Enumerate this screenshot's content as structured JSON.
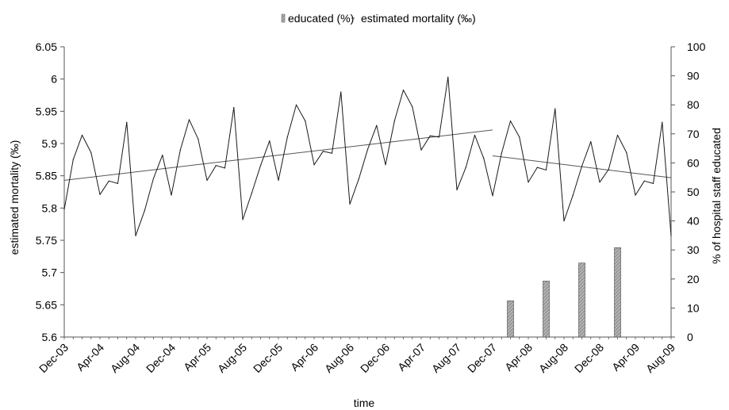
{
  "chart_data": {
    "type": "line",
    "xlabel": "time",
    "ylabel": "estimated mortality (‰)",
    "y2label": "% of hospital staff educated",
    "ylim": [
      5.6,
      6.05
    ],
    "y2lim": [
      0,
      100
    ],
    "yticks": [
      "5.6",
      "5.65",
      "5.7",
      "5.75",
      "5.8",
      "5.85",
      "5.9",
      "5.95",
      "6",
      "6.05"
    ],
    "y2ticks": [
      "0",
      "10",
      "20",
      "30",
      "40",
      "50",
      "60",
      "70",
      "80",
      "90",
      "100"
    ],
    "xticks": [
      "Dec-03",
      "Apr-04",
      "Aug-04",
      "Dec-04",
      "Apr-05",
      "Aug-05",
      "Dec-05",
      "Apr-06",
      "Aug-06",
      "Dec-06",
      "Apr-07",
      "Aug-07",
      "Dec-07",
      "Apr-08",
      "Aug-08",
      "Dec-08",
      "Apr-09",
      "Aug-09"
    ],
    "legend_position": "top",
    "grid": false,
    "legend": {
      "bar_label": "educated (%)",
      "line_label": "estimated mortality (‰)"
    },
    "series": [
      {
        "kind": "line",
        "axis": "left",
        "values": [
          5.798,
          5.875,
          5.913,
          5.886,
          5.821,
          5.842,
          5.838,
          5.933,
          5.757,
          5.796,
          5.846,
          5.882,
          5.82,
          5.89,
          5.937,
          5.907,
          5.843,
          5.866,
          5.862,
          5.956,
          5.782,
          5.823,
          5.866,
          5.904,
          5.843,
          5.91,
          5.96,
          5.935,
          5.867,
          5.888,
          5.885,
          5.98,
          5.806,
          5.845,
          5.891,
          5.928,
          5.867,
          5.935,
          5.983,
          5.957,
          5.89,
          5.912,
          5.91,
          6.003,
          5.828,
          5.863,
          5.913,
          5.877,
          5.819,
          5.885,
          5.935,
          5.91,
          5.84,
          5.863,
          5.859,
          5.954,
          5.78,
          5.82,
          5.865,
          5.903,
          5.84,
          5.86,
          5.913,
          5.886,
          5.82,
          5.842,
          5.838,
          5.933,
          5.757
        ]
      },
      {
        "kind": "bar",
        "axis": "right",
        "points": [
          {
            "index": 50,
            "value": 12.5
          },
          {
            "index": 54,
            "value": 19.3
          },
          {
            "index": 58,
            "value": 25.5
          },
          {
            "index": 62,
            "value": 30.8
          }
        ]
      }
    ],
    "trend_lines": [
      {
        "from_index": 0,
        "to_index": 48,
        "from_value": 5.843,
        "to_value": 5.921
      },
      {
        "from_index": 48,
        "to_index": 68,
        "from_value": 5.881,
        "to_value": 5.847
      }
    ],
    "colors": {
      "line": "#1a1a1a",
      "trend": "#555555",
      "bar_fill": "#a8a8a8",
      "bar_stroke": "#4a4a4a",
      "axis": "#555555"
    }
  }
}
